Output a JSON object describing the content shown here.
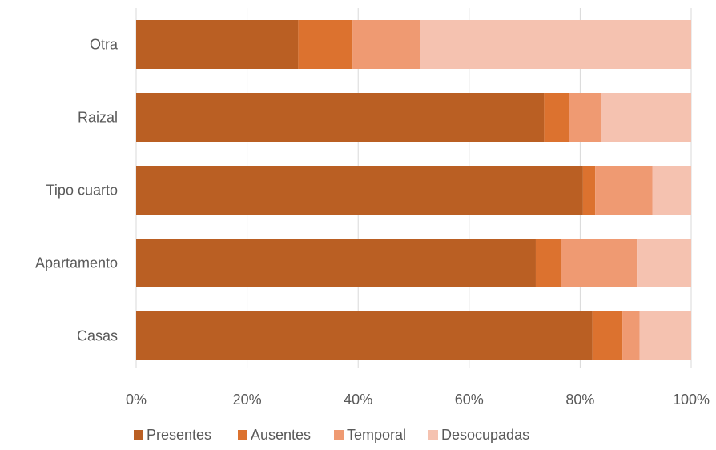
{
  "chart_data": {
    "type": "bar",
    "orientation": "horizontal",
    "stacked": "percent",
    "categories": [
      "Otra",
      "Raizal",
      "Tipo cuarto",
      "Apartamento",
      "Casas"
    ],
    "series": [
      {
        "name": "Presentes",
        "color": "#BA5F23",
        "values": [
          29.2,
          73.5,
          80.5,
          72.0,
          82.2
        ]
      },
      {
        "name": "Ausentes",
        "color": "#DC722F",
        "values": [
          9.8,
          4.5,
          2.2,
          4.6,
          5.4
        ]
      },
      {
        "name": "Temporal",
        "color": "#EF9A72",
        "values": [
          12.1,
          5.8,
          10.3,
          13.6,
          3.1
        ]
      },
      {
        "name": "Desocupadas",
        "color": "#F5C2B0",
        "values": [
          48.9,
          16.2,
          7.0,
          9.8,
          9.3
        ]
      }
    ],
    "xlim": [
      0,
      100
    ],
    "xticks": [
      "0%",
      "20%",
      "40%",
      "60%",
      "80%",
      "100%"
    ],
    "grid": true,
    "legend_position": "bottom"
  }
}
